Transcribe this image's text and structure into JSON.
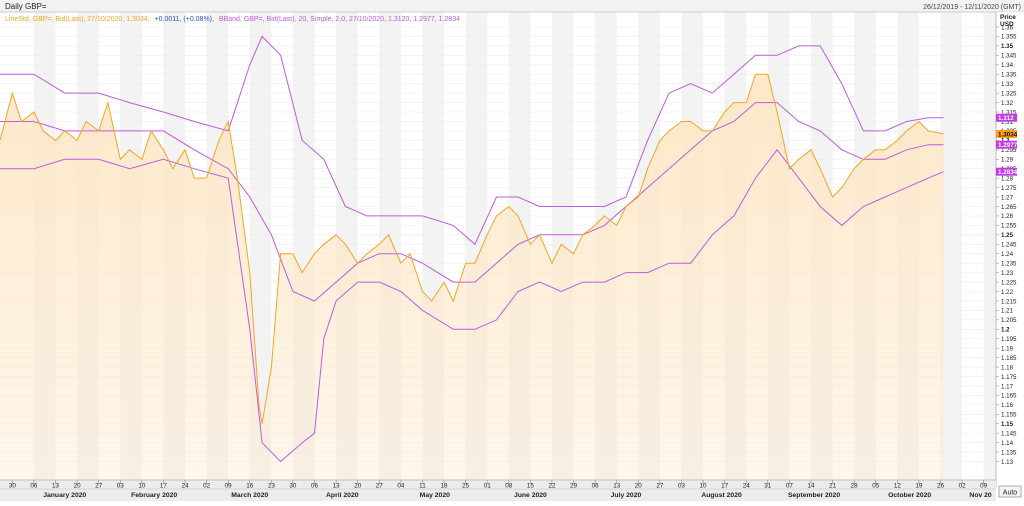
{
  "window": {
    "title": "Daily GBP=",
    "date_range": "26/12/2019 - 12/11/2020 (GMT)"
  },
  "legend": {
    "line_label": "LineStd, GBP=, Bid(Last), 27/10/2020, 1.3034,",
    "change_label": "+0.0011, (+0.08%),",
    "bband_label": "BBand, GBP=, Bid(Last), 20, Simple, 2.0, 27/10/2020, 1.3120, 1.2977, 1.2834"
  },
  "axis": {
    "price_title": "Price",
    "currency": "USD",
    "auto_label": "Auto"
  },
  "colors": {
    "line": "#f5a623",
    "fill": "#fde8c8",
    "band": "#c15bdc",
    "badge_orange": "#ff9e1b",
    "badge_purple": "#c13ae6"
  },
  "chart_data": {
    "type": "area",
    "title": "Daily GBP=",
    "ylabel": "Price USD",
    "ylim": [
      1.125,
      1.36
    ],
    "y_ticks": [
      "1.36",
      "1.355",
      "1.35",
      "1.345",
      "1.34",
      "1.335",
      "1.33",
      "1.325",
      "1.32",
      "1.315",
      "1.31",
      "1.305",
      "1.3",
      "1.295",
      "1.29",
      "1.285",
      "1.28",
      "1.275",
      "1.27",
      "1.265",
      "1.26",
      "1.255",
      "1.25",
      "1.245",
      "1.24",
      "1.235",
      "1.23",
      "1.225",
      "1.22",
      "1.215",
      "1.21",
      "1.205",
      "1.2",
      "1.195",
      "1.19",
      "1.185",
      "1.18",
      "1.175",
      "1.17",
      "1.165",
      "1.16",
      "1.155",
      "1.15",
      "1.145",
      "1.14",
      "1.135",
      "1.13"
    ],
    "y_bold_ticks": [
      "1.35",
      "1.3",
      "1.25",
      "1.2",
      "1.15"
    ],
    "x_day_ticks": [
      {
        "label": "30",
        "date": "2019-12-30"
      },
      {
        "label": "06",
        "date": "2020-01-06"
      },
      {
        "label": "13",
        "date": "2020-01-13"
      },
      {
        "label": "20",
        "date": "2020-01-20"
      },
      {
        "label": "27",
        "date": "2020-01-27"
      },
      {
        "label": "03",
        "date": "2020-02-03"
      },
      {
        "label": "10",
        "date": "2020-02-10"
      },
      {
        "label": "17",
        "date": "2020-02-17"
      },
      {
        "label": "24",
        "date": "2020-02-24"
      },
      {
        "label": "02",
        "date": "2020-03-02"
      },
      {
        "label": "09",
        "date": "2020-03-09"
      },
      {
        "label": "16",
        "date": "2020-03-16"
      },
      {
        "label": "23",
        "date": "2020-03-23"
      },
      {
        "label": "30",
        "date": "2020-03-30"
      },
      {
        "label": "06",
        "date": "2020-04-06"
      },
      {
        "label": "13",
        "date": "2020-04-13"
      },
      {
        "label": "20",
        "date": "2020-04-20"
      },
      {
        "label": "27",
        "date": "2020-04-27"
      },
      {
        "label": "04",
        "date": "2020-05-04"
      },
      {
        "label": "11",
        "date": "2020-05-11"
      },
      {
        "label": "18",
        "date": "2020-05-18"
      },
      {
        "label": "25",
        "date": "2020-05-25"
      },
      {
        "label": "01",
        "date": "2020-06-01"
      },
      {
        "label": "08",
        "date": "2020-06-08"
      },
      {
        "label": "15",
        "date": "2020-06-15"
      },
      {
        "label": "22",
        "date": "2020-06-22"
      },
      {
        "label": "29",
        "date": "2020-06-29"
      },
      {
        "label": "06",
        "date": "2020-07-06"
      },
      {
        "label": "13",
        "date": "2020-07-13"
      },
      {
        "label": "20",
        "date": "2020-07-20"
      },
      {
        "label": "27",
        "date": "2020-07-27"
      },
      {
        "label": "03",
        "date": "2020-08-03"
      },
      {
        "label": "10",
        "date": "2020-08-10"
      },
      {
        "label": "17",
        "date": "2020-08-17"
      },
      {
        "label": "24",
        "date": "2020-08-24"
      },
      {
        "label": "31",
        "date": "2020-08-31"
      },
      {
        "label": "07",
        "date": "2020-09-07"
      },
      {
        "label": "14",
        "date": "2020-09-14"
      },
      {
        "label": "21",
        "date": "2020-09-21"
      },
      {
        "label": "28",
        "date": "2020-09-28"
      },
      {
        "label": "05",
        "date": "2020-10-05"
      },
      {
        "label": "12",
        "date": "2020-10-12"
      },
      {
        "label": "19",
        "date": "2020-10-19"
      },
      {
        "label": "26",
        "date": "2020-10-26"
      },
      {
        "label": "02",
        "date": "2020-11-02"
      },
      {
        "label": "09",
        "date": "2020-11-09"
      }
    ],
    "x_month_labels": [
      {
        "label": "January 2020",
        "date": "2020-01-16"
      },
      {
        "label": "February 2020",
        "date": "2020-02-14"
      },
      {
        "label": "March 2020",
        "date": "2020-03-16"
      },
      {
        "label": "April 2020",
        "date": "2020-04-15"
      },
      {
        "label": "May 2020",
        "date": "2020-05-15"
      },
      {
        "label": "June 2020",
        "date": "2020-06-15"
      },
      {
        "label": "July 2020",
        "date": "2020-07-16"
      },
      {
        "label": "August 2020",
        "date": "2020-08-16"
      },
      {
        "label": "September 2020",
        "date": "2020-09-15"
      },
      {
        "label": "October 2020",
        "date": "2020-10-16"
      },
      {
        "label": "Nov 20",
        "date": "2020-11-08"
      }
    ],
    "price_badges": [
      {
        "label": "1.312",
        "value": 1.312,
        "kind": "upper"
      },
      {
        "label": "1.3034",
        "value": 1.3034,
        "kind": "last"
      },
      {
        "label": "1.2977",
        "value": 1.2977,
        "kind": "mid"
      },
      {
        "label": "1.2834",
        "value": 1.2834,
        "kind": "lower"
      }
    ],
    "series": [
      {
        "name": "GBP= Bid(Last)",
        "x": [
          "2019-12-26",
          "2019-12-30",
          "2020-01-02",
          "2020-01-06",
          "2020-01-09",
          "2020-01-13",
          "2020-01-16",
          "2020-01-20",
          "2020-01-23",
          "2020-01-27",
          "2020-01-30",
          "2020-02-03",
          "2020-02-06",
          "2020-02-10",
          "2020-02-13",
          "2020-02-17",
          "2020-02-20",
          "2020-02-24",
          "2020-02-27",
          "2020-03-02",
          "2020-03-06",
          "2020-03-09",
          "2020-03-12",
          "2020-03-16",
          "2020-03-19",
          "2020-03-20",
          "2020-03-23",
          "2020-03-26",
          "2020-03-30",
          "2020-04-02",
          "2020-04-06",
          "2020-04-09",
          "2020-04-13",
          "2020-04-16",
          "2020-04-20",
          "2020-04-23",
          "2020-04-27",
          "2020-04-30",
          "2020-05-04",
          "2020-05-07",
          "2020-05-11",
          "2020-05-14",
          "2020-05-18",
          "2020-05-21",
          "2020-05-25",
          "2020-05-28",
          "2020-06-01",
          "2020-06-04",
          "2020-06-08",
          "2020-06-11",
          "2020-06-15",
          "2020-06-18",
          "2020-06-22",
          "2020-06-25",
          "2020-06-29",
          "2020-07-02",
          "2020-07-06",
          "2020-07-09",
          "2020-07-13",
          "2020-07-16",
          "2020-07-20",
          "2020-07-23",
          "2020-07-27",
          "2020-07-30",
          "2020-08-03",
          "2020-08-06",
          "2020-08-10",
          "2020-08-13",
          "2020-08-17",
          "2020-08-20",
          "2020-08-24",
          "2020-08-27",
          "2020-08-31",
          "2020-09-03",
          "2020-09-07",
          "2020-09-10",
          "2020-09-14",
          "2020-09-17",
          "2020-09-21",
          "2020-09-24",
          "2020-09-28",
          "2020-10-01",
          "2020-10-05",
          "2020-10-08",
          "2020-10-12",
          "2020-10-15",
          "2020-10-19",
          "2020-10-22",
          "2020-10-27"
        ],
        "values": [
          1.3,
          1.325,
          1.31,
          1.315,
          1.305,
          1.3,
          1.305,
          1.3,
          1.31,
          1.305,
          1.32,
          1.29,
          1.295,
          1.29,
          1.305,
          1.295,
          1.285,
          1.295,
          1.28,
          1.28,
          1.3,
          1.31,
          1.28,
          1.23,
          1.16,
          1.15,
          1.18,
          1.24,
          1.24,
          1.23,
          1.24,
          1.245,
          1.25,
          1.245,
          1.235,
          1.24,
          1.245,
          1.25,
          1.235,
          1.24,
          1.22,
          1.215,
          1.225,
          1.215,
          1.235,
          1.235,
          1.25,
          1.26,
          1.265,
          1.26,
          1.245,
          1.25,
          1.235,
          1.245,
          1.24,
          1.25,
          1.255,
          1.26,
          1.255,
          1.265,
          1.27,
          1.285,
          1.3,
          1.305,
          1.31,
          1.31,
          1.305,
          1.305,
          1.315,
          1.32,
          1.32,
          1.335,
          1.335,
          1.315,
          1.285,
          1.29,
          1.295,
          1.285,
          1.27,
          1.275,
          1.285,
          1.29,
          1.295,
          1.295,
          1.3,
          1.305,
          1.31,
          1.305,
          1.3034
        ]
      },
      {
        "name": "BBand Upper",
        "x": [
          "2019-12-26",
          "2020-01-06",
          "2020-01-16",
          "2020-01-27",
          "2020-02-06",
          "2020-02-17",
          "2020-02-27",
          "2020-03-09",
          "2020-03-16",
          "2020-03-20",
          "2020-03-26",
          "2020-04-02",
          "2020-04-09",
          "2020-04-16",
          "2020-04-23",
          "2020-04-30",
          "2020-05-11",
          "2020-05-21",
          "2020-05-28",
          "2020-06-04",
          "2020-06-11",
          "2020-06-18",
          "2020-06-25",
          "2020-07-02",
          "2020-07-09",
          "2020-07-16",
          "2020-07-23",
          "2020-07-30",
          "2020-08-06",
          "2020-08-13",
          "2020-08-20",
          "2020-08-27",
          "2020-09-03",
          "2020-09-10",
          "2020-09-17",
          "2020-09-24",
          "2020-10-01",
          "2020-10-08",
          "2020-10-15",
          "2020-10-22",
          "2020-10-27"
        ],
        "values": [
          1.335,
          1.335,
          1.325,
          1.325,
          1.32,
          1.315,
          1.31,
          1.305,
          1.34,
          1.355,
          1.345,
          1.3,
          1.29,
          1.265,
          1.26,
          1.26,
          1.26,
          1.255,
          1.245,
          1.27,
          1.27,
          1.265,
          1.265,
          1.265,
          1.265,
          1.27,
          1.3,
          1.325,
          1.33,
          1.325,
          1.335,
          1.345,
          1.345,
          1.35,
          1.35,
          1.33,
          1.305,
          1.305,
          1.31,
          1.312,
          1.312
        ]
      },
      {
        "name": "BBand Middle",
        "x": [
          "2019-12-26",
          "2020-01-06",
          "2020-01-16",
          "2020-01-27",
          "2020-02-06",
          "2020-02-17",
          "2020-02-27",
          "2020-03-09",
          "2020-03-16",
          "2020-03-23",
          "2020-03-30",
          "2020-04-06",
          "2020-04-13",
          "2020-04-20",
          "2020-04-27",
          "2020-05-04",
          "2020-05-11",
          "2020-05-21",
          "2020-05-28",
          "2020-06-04",
          "2020-06-11",
          "2020-06-18",
          "2020-06-25",
          "2020-07-02",
          "2020-07-09",
          "2020-07-16",
          "2020-07-23",
          "2020-07-30",
          "2020-08-06",
          "2020-08-13",
          "2020-08-20",
          "2020-08-27",
          "2020-09-03",
          "2020-09-10",
          "2020-09-17",
          "2020-09-24",
          "2020-10-01",
          "2020-10-08",
          "2020-10-15",
          "2020-10-22",
          "2020-10-27"
        ],
        "values": [
          1.31,
          1.31,
          1.305,
          1.305,
          1.305,
          1.305,
          1.295,
          1.285,
          1.27,
          1.25,
          1.22,
          1.215,
          1.225,
          1.235,
          1.24,
          1.24,
          1.235,
          1.225,
          1.225,
          1.235,
          1.245,
          1.25,
          1.25,
          1.25,
          1.255,
          1.265,
          1.275,
          1.285,
          1.295,
          1.305,
          1.31,
          1.32,
          1.32,
          1.31,
          1.305,
          1.295,
          1.29,
          1.29,
          1.295,
          1.2977,
          1.2977
        ]
      },
      {
        "name": "BBand Lower",
        "x": [
          "2019-12-26",
          "2020-01-06",
          "2020-01-16",
          "2020-01-27",
          "2020-02-06",
          "2020-02-17",
          "2020-02-27",
          "2020-03-09",
          "2020-03-16",
          "2020-03-20",
          "2020-03-26",
          "2020-04-02",
          "2020-04-06",
          "2020-04-09",
          "2020-04-13",
          "2020-04-20",
          "2020-04-27",
          "2020-05-04",
          "2020-05-11",
          "2020-05-21",
          "2020-05-28",
          "2020-06-04",
          "2020-06-11",
          "2020-06-18",
          "2020-06-25",
          "2020-07-02",
          "2020-07-09",
          "2020-07-16",
          "2020-07-23",
          "2020-07-30",
          "2020-08-06",
          "2020-08-13",
          "2020-08-20",
          "2020-08-27",
          "2020-09-03",
          "2020-09-10",
          "2020-09-17",
          "2020-09-24",
          "2020-10-01",
          "2020-10-08",
          "2020-10-15",
          "2020-10-22",
          "2020-10-27"
        ],
        "values": [
          1.285,
          1.285,
          1.29,
          1.29,
          1.285,
          1.29,
          1.285,
          1.28,
          1.2,
          1.14,
          1.13,
          1.14,
          1.145,
          1.195,
          1.215,
          1.225,
          1.225,
          1.22,
          1.21,
          1.2,
          1.2,
          1.205,
          1.22,
          1.225,
          1.22,
          1.225,
          1.225,
          1.23,
          1.23,
          1.235,
          1.235,
          1.25,
          1.26,
          1.28,
          1.295,
          1.28,
          1.265,
          1.255,
          1.265,
          1.27,
          1.275,
          1.28,
          1.2834
        ]
      }
    ],
    "grid": true
  }
}
